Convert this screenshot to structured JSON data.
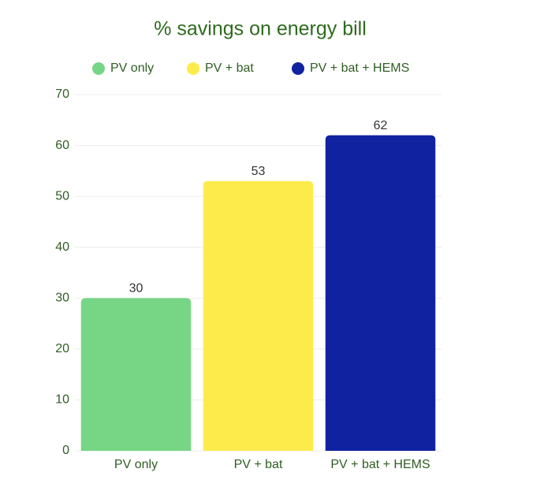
{
  "chart_data": {
    "type": "bar",
    "title": "% savings on energy bill",
    "categories": [
      "PV only",
      "PV + bat",
      "PV + bat + HEMS"
    ],
    "values": [
      30,
      53,
      62
    ],
    "colors": [
      "#77d685",
      "#fdeb4c",
      "#1122a1"
    ],
    "ylim": [
      0,
      70
    ],
    "yticks": [
      0,
      10,
      20,
      30,
      40,
      50,
      60,
      70
    ],
    "grid": true,
    "legend": "top"
  }
}
